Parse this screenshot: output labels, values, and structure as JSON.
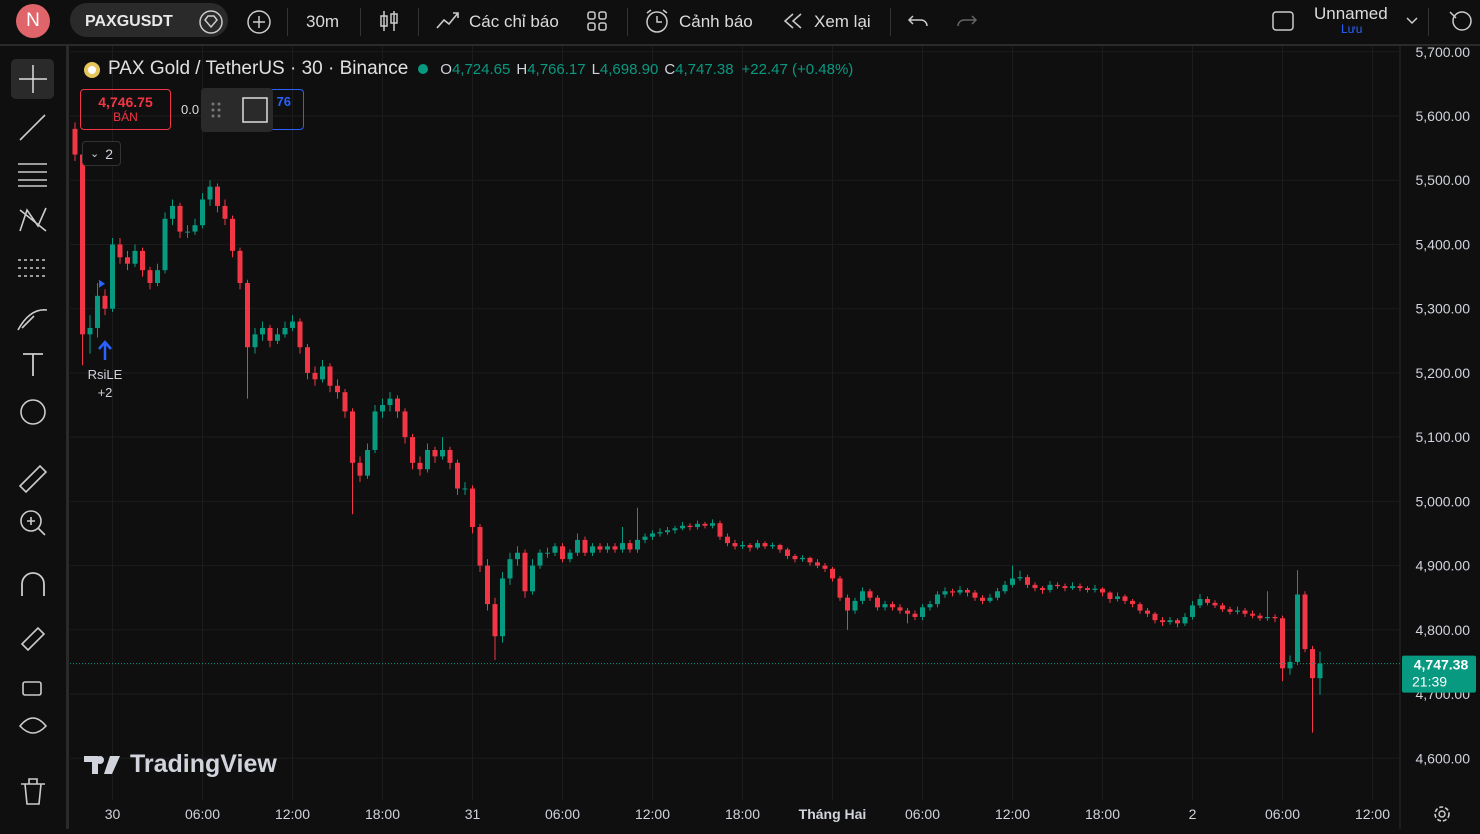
{
  "topbar": {
    "avatar": "N",
    "symbol": "PAXGUSDT",
    "interval": "30m",
    "indicators": "Các chỉ báo",
    "alerts": "Cảnh báo",
    "replay": "Xem lại",
    "layout_name": "Unnamed",
    "save": "Lưu"
  },
  "chart_data": {
    "type": "candlestick",
    "title": "PAX Gold / TetherUS · 30 · Binance",
    "legend": {
      "open_key": "O",
      "high_key": "H",
      "low_key": "L",
      "close_key": "C",
      "open": {
        "value": 4724.65,
        "label": "4,724.65"
      },
      "high": {
        "value": 4766.17,
        "label": "4,766.17"
      },
      "low": {
        "value": 4698.9,
        "label": "4,698.90"
      },
      "close": {
        "value": 4747.38,
        "label": "4,747.38"
      },
      "change": "+22.47 (+0.48%)"
    },
    "order_panel": {
      "sell_price": "4,746.75",
      "sell_label": "BÁN",
      "quantity": "0.0",
      "buy_price": "76"
    },
    "indicator_count": "2",
    "signal": {
      "name": "RsiLE",
      "extra": "+2"
    },
    "watermark": "TradingView",
    "up_color": "#089981",
    "down_color": "#f23645",
    "grid": true,
    "ylim": [
      4535,
      5709
    ],
    "yticks": [
      {
        "value": 5700,
        "label": "5,700.00"
      },
      {
        "value": 5600,
        "label": "5,600.00"
      },
      {
        "value": 5500,
        "label": "5,500.00"
      },
      {
        "value": 5400,
        "label": "5,400.00"
      },
      {
        "value": 5300,
        "label": "5,300.00"
      },
      {
        "value": 5200,
        "label": "5,200.00"
      },
      {
        "value": 5100,
        "label": "5,100.00"
      },
      {
        "value": 5000,
        "label": "5,000.00"
      },
      {
        "value": 4900,
        "label": "4,900.00"
      },
      {
        "value": 4800,
        "label": "4,800.00"
      },
      {
        "value": 4700,
        "label": "4,700.00"
      },
      {
        "value": 4600,
        "label": "4,600.00"
      }
    ],
    "xtick_labels": [
      "30",
      "06:00",
      "12:00",
      "18:00",
      "31",
      "06:00",
      "12:00",
      "18:00",
      "Tháng Hai",
      "06:00",
      "12:00",
      "18:00",
      "2",
      "06:00",
      "12:00"
    ],
    "price_tag": {
      "value": 4747.38,
      "label": "4,747.38"
    },
    "countdown": "21:39",
    "candles": [
      [
        5580,
        5590,
        5530,
        5540
      ],
      [
        5540,
        5545,
        5212,
        5260
      ],
      [
        5260,
        5290,
        5230,
        5270
      ],
      [
        5270,
        5340,
        5255,
        5320
      ],
      [
        5320,
        5330,
        5290,
        5300
      ],
      [
        5300,
        5410,
        5295,
        5400
      ],
      [
        5400,
        5410,
        5370,
        5380
      ],
      [
        5380,
        5390,
        5360,
        5370
      ],
      [
        5370,
        5400,
        5365,
        5390
      ],
      [
        5390,
        5395,
        5350,
        5360
      ],
      [
        5360,
        5365,
        5330,
        5340
      ],
      [
        5340,
        5370,
        5335,
        5360
      ],
      [
        5360,
        5450,
        5355,
        5440
      ],
      [
        5440,
        5470,
        5430,
        5460
      ],
      [
        5460,
        5465,
        5410,
        5420
      ],
      [
        5420,
        5430,
        5410,
        5420
      ],
      [
        5420,
        5440,
        5415,
        5430
      ],
      [
        5430,
        5480,
        5425,
        5470
      ],
      [
        5470,
        5500,
        5460,
        5490
      ],
      [
        5490,
        5495,
        5450,
        5460
      ],
      [
        5460,
        5470,
        5430,
        5440
      ],
      [
        5440,
        5445,
        5380,
        5390
      ],
      [
        5390,
        5395,
        5330,
        5340
      ],
      [
        5340,
        5345,
        5160,
        5240
      ],
      [
        5240,
        5270,
        5230,
        5260
      ],
      [
        5260,
        5280,
        5250,
        5270
      ],
      [
        5270,
        5275,
        5240,
        5250
      ],
      [
        5250,
        5270,
        5245,
        5260
      ],
      [
        5260,
        5280,
        5255,
        5270
      ],
      [
        5270,
        5290,
        5265,
        5280
      ],
      [
        5280,
        5285,
        5230,
        5240
      ],
      [
        5240,
        5245,
        5190,
        5200
      ],
      [
        5200,
        5210,
        5180,
        5190
      ],
      [
        5190,
        5220,
        5185,
        5210
      ],
      [
        5210,
        5215,
        5170,
        5180
      ],
      [
        5180,
        5190,
        5160,
        5170
      ],
      [
        5170,
        5175,
        5130,
        5140
      ],
      [
        5140,
        5145,
        4980,
        5060
      ],
      [
        5060,
        5070,
        5030,
        5040
      ],
      [
        5040,
        5090,
        5035,
        5080
      ],
      [
        5080,
        5150,
        5075,
        5140
      ],
      [
        5140,
        5160,
        5130,
        5150
      ],
      [
        5150,
        5170,
        5140,
        5160
      ],
      [
        5160,
        5165,
        5130,
        5140
      ],
      [
        5140,
        5145,
        5090,
        5100
      ],
      [
        5100,
        5105,
        5050,
        5060
      ],
      [
        5060,
        5070,
        5040,
        5050
      ],
      [
        5050,
        5090,
        5045,
        5080
      ],
      [
        5080,
        5085,
        5060,
        5070
      ],
      [
        5070,
        5100,
        5065,
        5080
      ],
      [
        5080,
        5085,
        5050,
        5060
      ],
      [
        5060,
        5065,
        5010,
        5020
      ],
      [
        5020,
        5030,
        5010,
        5020
      ],
      [
        5020,
        5025,
        4950,
        4960
      ],
      [
        4960,
        4965,
        4890,
        4900
      ],
      [
        4900,
        4910,
        4830,
        4840
      ],
      [
        4840,
        4850,
        4753,
        4790
      ],
      [
        4790,
        4890,
        4780,
        4880
      ],
      [
        4880,
        4920,
        4870,
        4910
      ],
      [
        4910,
        4930,
        4900,
        4920
      ],
      [
        4920,
        4925,
        4850,
        4860
      ],
      [
        4860,
        4910,
        4855,
        4900
      ],
      [
        4900,
        4925,
        4895,
        4920
      ],
      [
        4920,
        4928,
        4912,
        4920
      ],
      [
        4920,
        4935,
        4915,
        4930
      ],
      [
        4930,
        4935,
        4905,
        4910
      ],
      [
        4910,
        4925,
        4905,
        4920
      ],
      [
        4920,
        4950,
        4915,
        4940
      ],
      [
        4940,
        4945,
        4915,
        4920
      ],
      [
        4920,
        4935,
        4915,
        4930
      ],
      [
        4930,
        4935,
        4920,
        4925
      ],
      [
        4925,
        4935,
        4920,
        4930
      ],
      [
        4930,
        4935,
        4920,
        4925
      ],
      [
        4925,
        4960,
        4920,
        4935
      ],
      [
        4935,
        4940,
        4920,
        4925
      ],
      [
        4925,
        4990,
        4920,
        4940
      ],
      [
        4940,
        4950,
        4935,
        4945
      ],
      [
        4945,
        4955,
        4940,
        4950
      ],
      [
        4950,
        4958,
        4945,
        4952
      ],
      [
        4952,
        4960,
        4948,
        4955
      ],
      [
        4955,
        4962,
        4950,
        4958
      ],
      [
        4958,
        4968,
        4955,
        4962
      ],
      [
        4962,
        4966,
        4955,
        4960
      ],
      [
        4960,
        4970,
        4956,
        4965
      ],
      [
        4965,
        4968,
        4958,
        4962
      ],
      [
        4962,
        4972,
        4958,
        4966
      ],
      [
        4966,
        4970,
        4940,
        4945
      ],
      [
        4945,
        4950,
        4930,
        4935
      ],
      [
        4935,
        4940,
        4925,
        4930
      ],
      [
        4930,
        4938,
        4926,
        4932
      ],
      [
        4932,
        4935,
        4922,
        4928
      ],
      [
        4928,
        4940,
        4925,
        4935
      ],
      [
        4935,
        4938,
        4926,
        4930
      ],
      [
        4930,
        4936,
        4926,
        4932
      ],
      [
        4932,
        4934,
        4920,
        4925
      ],
      [
        4925,
        4928,
        4910,
        4915
      ],
      [
        4915,
        4918,
        4905,
        4910
      ],
      [
        4910,
        4916,
        4906,
        4912
      ],
      [
        4912,
        4914,
        4900,
        4905
      ],
      [
        4905,
        4910,
        4896,
        4900
      ],
      [
        4900,
        4904,
        4890,
        4895
      ],
      [
        4895,
        4898,
        4875,
        4880
      ],
      [
        4880,
        4884,
        4845,
        4850
      ],
      [
        4850,
        4855,
        4800,
        4830
      ],
      [
        4830,
        4850,
        4825,
        4845
      ],
      [
        4845,
        4866,
        4840,
        4860
      ],
      [
        4860,
        4864,
        4845,
        4850
      ],
      [
        4850,
        4854,
        4830,
        4835
      ],
      [
        4835,
        4845,
        4830,
        4840
      ],
      [
        4840,
        4844,
        4830,
        4835
      ],
      [
        4835,
        4840,
        4825,
        4830
      ],
      [
        4830,
        4834,
        4810,
        4825
      ],
      [
        4825,
        4830,
        4815,
        4820
      ],
      [
        4820,
        4840,
        4815,
        4835
      ],
      [
        4835,
        4845,
        4830,
        4840
      ],
      [
        4840,
        4860,
        4835,
        4855
      ],
      [
        4855,
        4866,
        4850,
        4860
      ],
      [
        4860,
        4864,
        4852,
        4858
      ],
      [
        4858,
        4868,
        4854,
        4862
      ],
      [
        4862,
        4865,
        4852,
        4858
      ],
      [
        4858,
        4862,
        4845,
        4850
      ],
      [
        4850,
        4854,
        4840,
        4845
      ],
      [
        4845,
        4856,
        4842,
        4850
      ],
      [
        4850,
        4865,
        4846,
        4860
      ],
      [
        4860,
        4876,
        4856,
        4870
      ],
      [
        4870,
        4900,
        4866,
        4880
      ],
      [
        4880,
        4892,
        4876,
        4882
      ],
      [
        4882,
        4886,
        4865,
        4870
      ],
      [
        4870,
        4874,
        4860,
        4865
      ],
      [
        4865,
        4868,
        4856,
        4862
      ],
      [
        4862,
        4876,
        4858,
        4870
      ],
      [
        4870,
        4874,
        4864,
        4868
      ],
      [
        4868,
        4872,
        4860,
        4865
      ],
      [
        4865,
        4874,
        4862,
        4868
      ],
      [
        4868,
        4872,
        4860,
        4865
      ],
      [
        4865,
        4868,
        4858,
        4862
      ],
      [
        4862,
        4870,
        4858,
        4864
      ],
      [
        4864,
        4866,
        4852,
        4858
      ],
      [
        4858,
        4860,
        4842,
        4848
      ],
      [
        4848,
        4858,
        4844,
        4852
      ],
      [
        4852,
        4855,
        4840,
        4845
      ],
      [
        4845,
        4848,
        4835,
        4840
      ],
      [
        4840,
        4843,
        4825,
        4830
      ],
      [
        4830,
        4834,
        4820,
        4825
      ],
      [
        4825,
        4828,
        4810,
        4815
      ],
      [
        4815,
        4820,
        4806,
        4812
      ],
      [
        4812,
        4820,
        4808,
        4815
      ],
      [
        4815,
        4818,
        4804,
        4810
      ],
      [
        4810,
        4826,
        4806,
        4820
      ],
      [
        4820,
        4845,
        4816,
        4838
      ],
      [
        4838,
        4856,
        4834,
        4848
      ],
      [
        4848,
        4852,
        4838,
        4842
      ],
      [
        4842,
        4846,
        4834,
        4838
      ],
      [
        4838,
        4842,
        4828,
        4832
      ],
      [
        4832,
        4836,
        4824,
        4828
      ],
      [
        4828,
        4836,
        4824,
        4830
      ],
      [
        4830,
        4834,
        4820,
        4825
      ],
      [
        4825,
        4830,
        4818,
        4822
      ],
      [
        4822,
        4826,
        4814,
        4818
      ],
      [
        4818,
        4860,
        4814,
        4820
      ],
      [
        4820,
        4824,
        4812,
        4818
      ],
      [
        4818,
        4822,
        4720,
        4740
      ],
      [
        4740,
        4760,
        4730,
        4750
      ],
      [
        4750,
        4893,
        4745,
        4855
      ],
      [
        4855,
        4860,
        4765,
        4770
      ],
      [
        4770,
        4775,
        4640,
        4724.65
      ],
      [
        4724.65,
        4766.17,
        4698.9,
        4747.38
      ]
    ]
  }
}
